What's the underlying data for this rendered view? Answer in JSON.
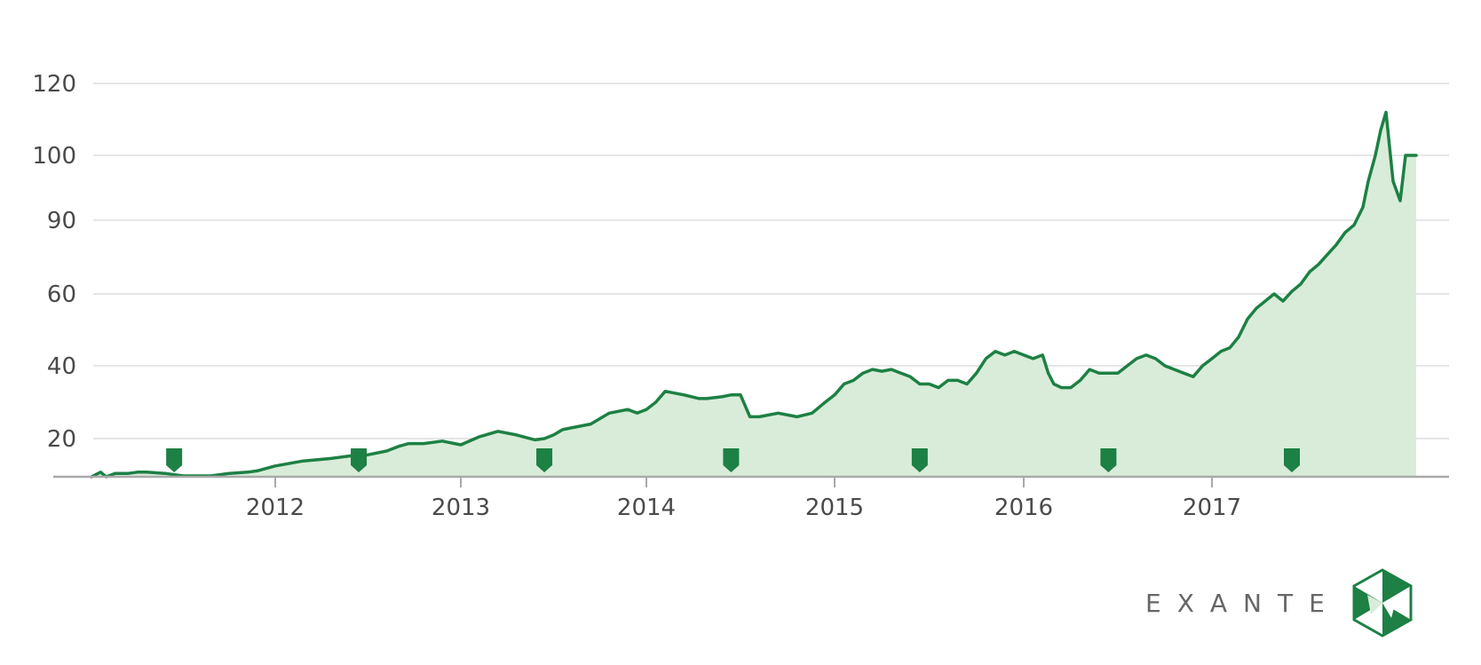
{
  "brand": {
    "name": "EXANTE",
    "logo_icon": "hexagon-triangle-logo",
    "accent_color": "#1d8044"
  },
  "chart_data": {
    "type": "area",
    "title": "",
    "xlabel": "",
    "ylabel": "",
    "ylim": [
      0,
      125
    ],
    "xlim": [
      2011.0,
      2018.25
    ],
    "y_ticks": [
      20,
      40,
      60,
      90,
      100,
      120
    ],
    "x_ticks": [
      "2012",
      "2013",
      "2014",
      "2015",
      "2016",
      "2017"
    ],
    "grid": true,
    "line_color": "#1d8044",
    "fill_color": "#d9ecd9",
    "markers": [
      2011.45,
      2012.45,
      2013.45,
      2014.45,
      2015.45,
      2016.45,
      2017.45
    ],
    "series": [
      {
        "x": [
          2011.0,
          2011.05,
          2011.08,
          2011.13,
          2011.2,
          2011.25,
          2011.3,
          2011.4,
          2011.5,
          2011.6,
          2011.65,
          2011.75,
          2011.85,
          2011.9,
          2012.0,
          2012.15,
          2012.3,
          2012.4,
          2012.5,
          2012.6,
          2012.67,
          2012.72,
          2012.8,
          2012.9,
          2013.0,
          2013.1,
          2013.2,
          2013.3,
          2013.4,
          2013.45,
          2013.5,
          2013.55,
          2013.7,
          2013.8,
          2013.9,
          2013.95,
          2014.0,
          2014.05,
          2014.1,
          2014.2,
          2014.28,
          2014.32,
          2014.4,
          2014.45,
          2014.5,
          2014.55,
          2014.6,
          2014.7,
          2014.8,
          2014.88,
          2014.95,
          2015.0,
          2015.05,
          2015.1,
          2015.15,
          2015.2,
          2015.25,
          2015.3,
          2015.35,
          2015.4,
          2015.45,
          2015.5,
          2015.55,
          2015.6,
          2015.65,
          2015.7,
          2015.75,
          2015.8,
          2015.85,
          2015.9,
          2015.95,
          2016.0,
          2016.05,
          2016.1,
          2016.13,
          2016.16,
          2016.2,
          2016.25,
          2016.3,
          2016.35,
          2016.4,
          2016.45,
          2016.5,
          2016.55,
          2016.6,
          2016.65,
          2016.7,
          2016.75,
          2016.8,
          2016.85,
          2016.9,
          2016.95,
          2017.0,
          2017.05,
          2017.1,
          2017.15,
          2017.2,
          2017.25,
          2017.3,
          2017.35,
          2017.4,
          2017.45,
          2017.5,
          2017.55,
          2017.6,
          2017.65,
          2017.7,
          2017.75,
          2017.8,
          2017.85,
          2017.88,
          2017.92,
          2017.95,
          2017.98,
          2018.02,
          2018.06,
          2018.09,
          2018.12,
          2018.15
        ],
        "values": [
          4,
          6.5,
          4.5,
          6,
          6,
          6.5,
          6.5,
          6,
          5,
          5,
          5,
          6,
          6.5,
          7,
          9,
          11,
          12,
          13,
          13.5,
          15,
          17,
          18,
          18,
          19,
          17.5,
          20.5,
          22,
          21,
          19.5,
          20,
          21,
          22.5,
          24,
          27,
          28,
          27,
          28,
          30,
          33,
          32,
          31,
          31,
          31.5,
          32,
          32,
          26,
          26,
          27,
          26,
          27,
          30,
          32,
          35,
          36,
          38,
          39,
          38.5,
          39,
          38,
          37,
          35,
          35,
          34,
          36,
          36,
          35,
          38,
          42,
          44,
          43,
          44,
          43,
          42,
          43,
          38,
          35,
          34,
          34,
          36,
          39,
          38,
          38,
          38,
          40,
          42,
          43,
          42,
          40,
          39,
          38,
          37,
          40,
          42,
          44,
          45,
          48,
          53,
          56,
          58,
          60,
          58,
          61,
          64,
          69,
          72,
          76,
          80,
          85,
          88,
          92,
          96,
          100,
          107,
          112,
          96,
          93,
          100,
          100,
          100
        ]
      }
    ]
  }
}
